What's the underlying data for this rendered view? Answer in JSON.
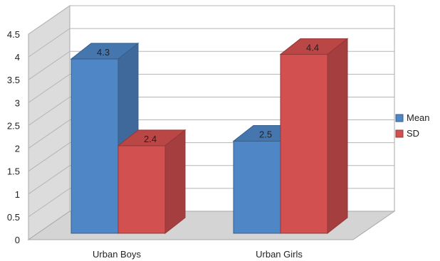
{
  "chart_data": {
    "type": "bar",
    "categories": [
      "Urban Boys",
      "Urban Girls"
    ],
    "series": [
      {
        "name": "Mean",
        "values": [
          4.3,
          2.5
        ],
        "color": "#4f86c6"
      },
      {
        "name": "SD",
        "values": [
          2.4,
          4.4
        ],
        "color": "#d35050"
      }
    ],
    "ylim": [
      0,
      4.5
    ],
    "y_ticks": [
      "0",
      "0.5",
      "1",
      "1.5",
      "2",
      "2.5",
      "3",
      "3.5",
      "4",
      "4.5"
    ],
    "grid": true,
    "legend_position": "right",
    "three_d": true
  }
}
